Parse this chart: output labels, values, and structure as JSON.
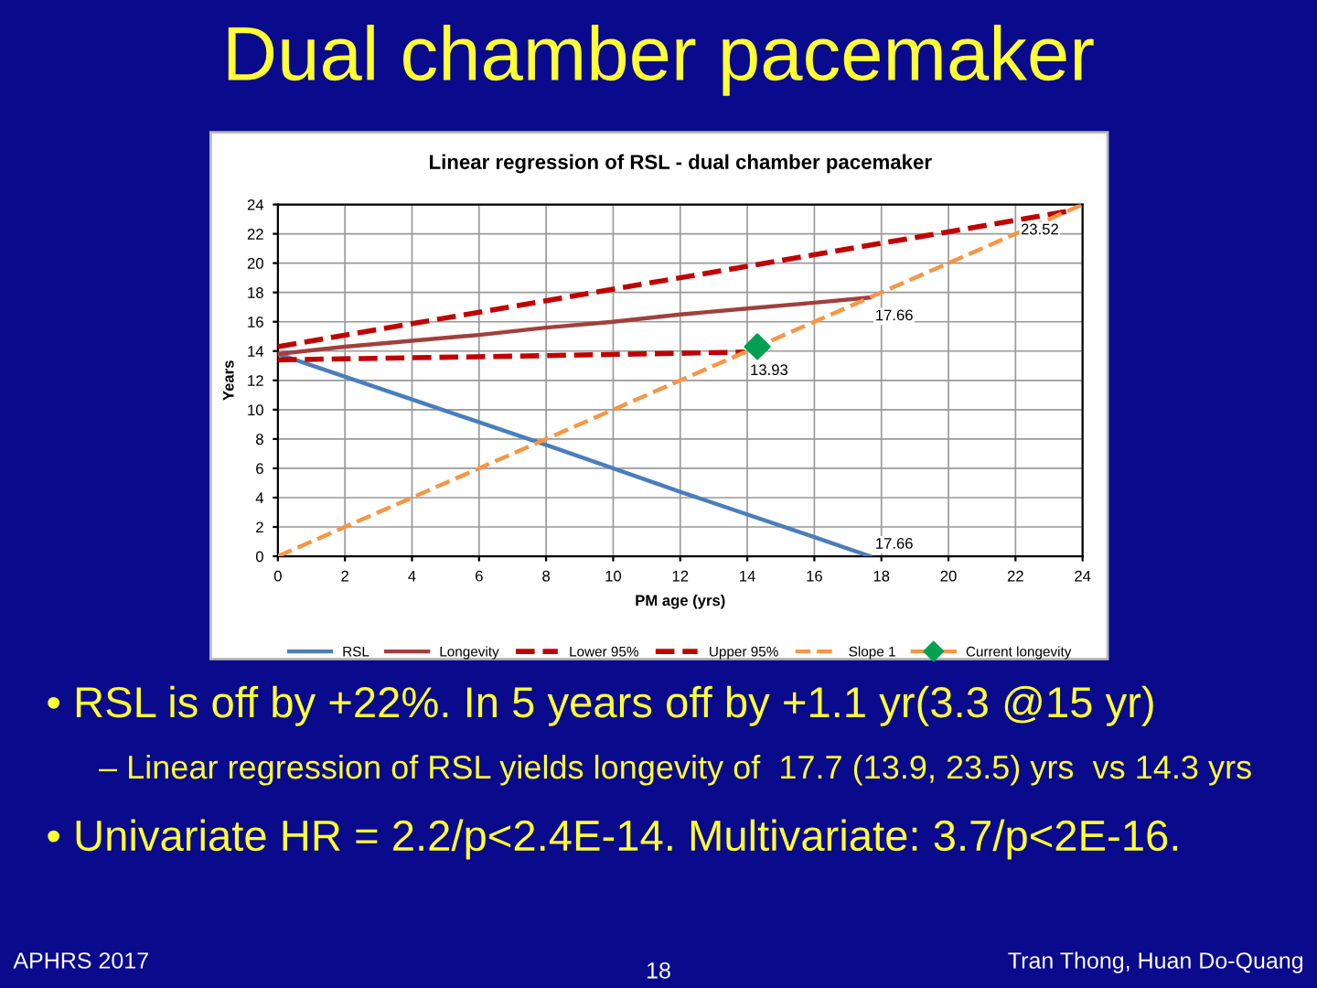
{
  "chart_data": {
    "type": "line",
    "title": "Dual chamber pacemaker",
    "subtitle": "Linear regression of RSL - dual chamber pacemaker",
    "xlabel": "PM age (yrs)",
    "ylabel": "Years",
    "xlim": [
      0,
      24
    ],
    "ylim": [
      0,
      24
    ],
    "xticks": [
      0,
      2,
      4,
      6,
      8,
      10,
      12,
      14,
      16,
      18,
      20,
      22,
      24
    ],
    "yticks": [
      0,
      2,
      4,
      6,
      8,
      10,
      12,
      14,
      16,
      18,
      20,
      22,
      24
    ],
    "grid": true,
    "legend": "bottom",
    "series": [
      {
        "name": "RSL",
        "color": "#4a7ebb",
        "line_style": "solid",
        "x": [
          0,
          4,
          8,
          12,
          16,
          17.66
        ],
        "values": [
          13.8,
          10.7,
          7.6,
          4.4,
          1.3,
          0
        ]
      },
      {
        "name": "Longevity",
        "color": "#a0403d",
        "line_style": "solid",
        "x": [
          0,
          2,
          4,
          6,
          8,
          10,
          12,
          14,
          16,
          17.66
        ],
        "values": [
          13.8,
          14.3,
          14.7,
          15.1,
          15.6,
          16.0,
          16.5,
          16.9,
          17.3,
          17.66
        ]
      },
      {
        "name": "Lower 95%",
        "color": "#c00000",
        "line_style": "dashed",
        "x": [
          0,
          7,
          13.93
        ],
        "values": [
          13.4,
          13.65,
          13.93
        ]
      },
      {
        "name": "Upper 95%",
        "color": "#c00000",
        "line_style": "dashed",
        "x": [
          0,
          23.52
        ],
        "values": [
          14.3,
          23.52
        ]
      },
      {
        "name": "Slope 1",
        "color": "#f79646",
        "line_style": "dashed",
        "x": [
          0,
          24
        ],
        "values": [
          0,
          24
        ]
      },
      {
        "name": "Current longevity",
        "type": "scatter",
        "color": "#00a050",
        "marker": "diamond",
        "x": [
          14.3
        ],
        "values": [
          14.3
        ]
      }
    ],
    "annotations": [
      {
        "text": "17.66",
        "x": 17.66,
        "y": 17.66
      },
      {
        "text": "13.93",
        "x": 13.93,
        "y": 13.93
      },
      {
        "text": "23.52",
        "x": 23.52,
        "y": 23.52
      },
      {
        "text": "17.66",
        "x": 17.66,
        "y": 0
      },
      "• RSL is off by +22%. In 5 years off by +1.1 yr(3.3 @15 yr)",
      "– Linear regression of RSL yields longevity of  17.7 (13.9, 23.5) yrs  vs 14.3 yrs",
      "• Univariate HR = 2.2/p<2.4E-14. Multivariate: 3.7/p<2E-16.",
      "APHRS 2017",
      "18",
      "Tran Thong, Huan Do-Quang"
    ]
  }
}
